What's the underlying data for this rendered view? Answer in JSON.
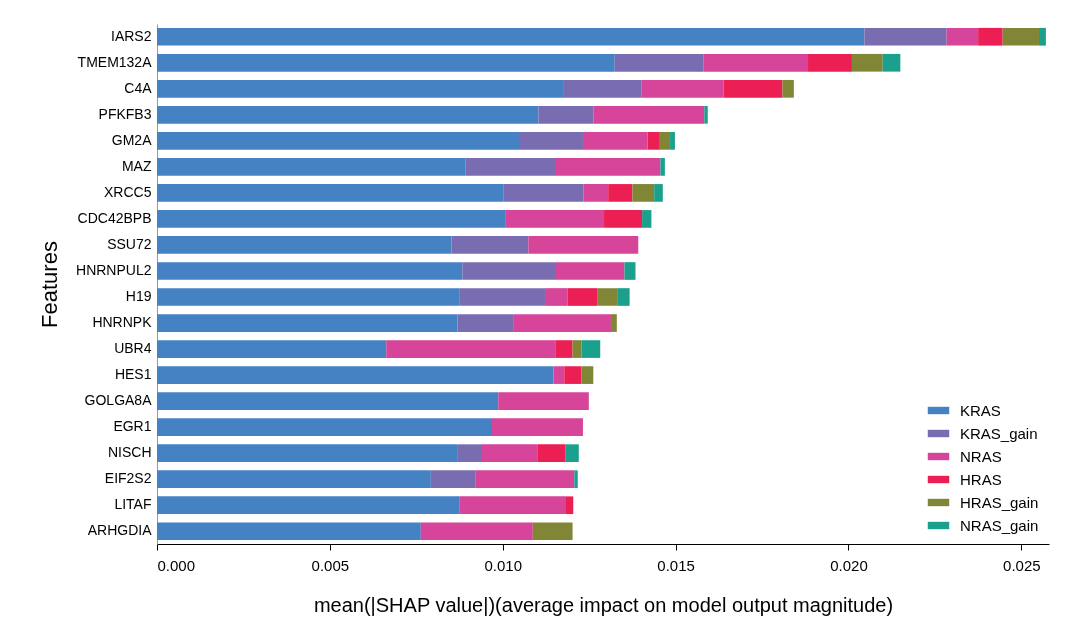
{
  "chart_data": {
    "type": "bar",
    "orientation": "horizontal",
    "stacked": true,
    "categories": [
      "IARS2",
      "TMEM132A",
      "C4A",
      "PFKFB3",
      "GM2A",
      "MAZ",
      "XRCC5",
      "CDC42BPB",
      "SSU72",
      "HNRNPUL2",
      "H19",
      "HNRNPK",
      "UBR4",
      "HES1",
      "GOLGA8A",
      "EGR1",
      "NISCH",
      "EIF2S2",
      "LITAF",
      "ARHGDIA"
    ],
    "series": [
      {
        "name": "KRAS",
        "color": "#4482c4",
        "values": [
          0.02046,
          0.01324,
          0.01177,
          0.01103,
          0.01047,
          0.00893,
          0.01003,
          0.01009,
          0.00852,
          0.00883,
          0.00874,
          0.00869,
          0.00663,
          0.01147,
          0.00987,
          0.00969,
          0.00868,
          0.00792,
          0.00874,
          0.00763
        ]
      },
      {
        "name": "KRAS_gain",
        "color": "#7a6cb0",
        "values": [
          0.00238,
          0.00256,
          0.00225,
          0.00159,
          0.00185,
          0.00261,
          0.00231,
          0,
          0.00222,
          0.00271,
          0.00251,
          0.00161,
          0,
          0,
          0,
          0,
          0.00072,
          0.0013,
          0,
          0
        ]
      },
      {
        "name": "NRAS",
        "color": "#d64599",
        "values": [
          0.00091,
          0.00303,
          0.00237,
          0.00321,
          0.00187,
          0.00302,
          0.00071,
          0.00284,
          0.00318,
          0.00198,
          0.00063,
          0.00283,
          0.00489,
          0.00031,
          0.00262,
          0.00263,
          0.0016,
          0.00285,
          0.00309,
          0.00324
        ]
      },
      {
        "name": "HRAS",
        "color": "#eb1f53",
        "values": [
          0.00071,
          0.00127,
          0.0017,
          0,
          0.00033,
          0,
          0.0007,
          0.0011,
          0,
          0,
          0.00085,
          0,
          0.0005,
          0.0005,
          0,
          0,
          0.00082,
          0,
          0.00021,
          0
        ]
      },
      {
        "name": "HRAS_gain",
        "color": "#818536",
        "values": [
          0.00105,
          0.00089,
          0.00033,
          0,
          0.00032,
          0,
          0.00063,
          0,
          0,
          0,
          0.0006,
          0.00017,
          0.00026,
          0.00034,
          0,
          0,
          0,
          0,
          0,
          0.00115
        ]
      },
      {
        "name": "NRAS_gain",
        "color": "#1ca08e",
        "values": [
          0.0002,
          0.00051,
          0,
          0.0001,
          0.00014,
          0.00013,
          0.00025,
          0.00027,
          0,
          0.00032,
          0.00034,
          0,
          0.00054,
          0,
          0,
          0,
          0.00038,
          0.0001,
          0,
          0
        ]
      }
    ],
    "xlabel": "mean(|SHAP value|)(average impact on model output magnitude)",
    "ylabel": "Features",
    "xlim": [
      0,
      0.0258
    ],
    "xticks": [
      {
        "value": 0,
        "label": "0.000"
      },
      0.005,
      {
        "value": 0.01,
        "label": "0.010"
      },
      0.015,
      {
        "value": 0.02,
        "label": "0.020"
      },
      0.025
    ],
    "legend": "bottom right",
    "grid": false
  }
}
